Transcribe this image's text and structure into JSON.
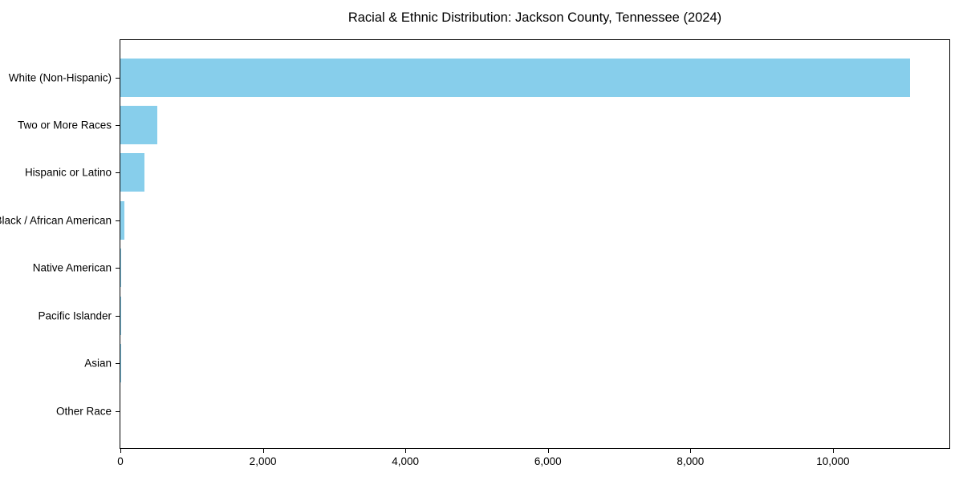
{
  "chart_data": {
    "type": "bar",
    "orientation": "horizontal",
    "title": "Racial & Ethnic Distribution: Jackson County, Tennessee (2024)",
    "categories": [
      "White (Non-Hispanic)",
      "Two or More Races",
      "Hispanic or Latino",
      "Black / African American",
      "Native American",
      "Pacific Islander",
      "Asian",
      "Other Race"
    ],
    "values": [
      11080,
      523,
      340,
      55,
      12,
      5,
      3,
      0
    ],
    "bar_color": "#87CEEB",
    "xlim": [
      0,
      11634
    ],
    "xticks": [
      {
        "value": 0,
        "label": "0"
      },
      {
        "value": 2000,
        "label": "2,000"
      },
      {
        "value": 4000,
        "label": "4,000"
      },
      {
        "value": 6000,
        "label": "6,000"
      },
      {
        "value": 8000,
        "label": "8,000"
      },
      {
        "value": 10000,
        "label": "10,000"
      }
    ],
    "xlabel": "",
    "ylabel": "",
    "grid": false,
    "legend": null,
    "axis_color": "#000000",
    "background_color": "#ffffff"
  }
}
